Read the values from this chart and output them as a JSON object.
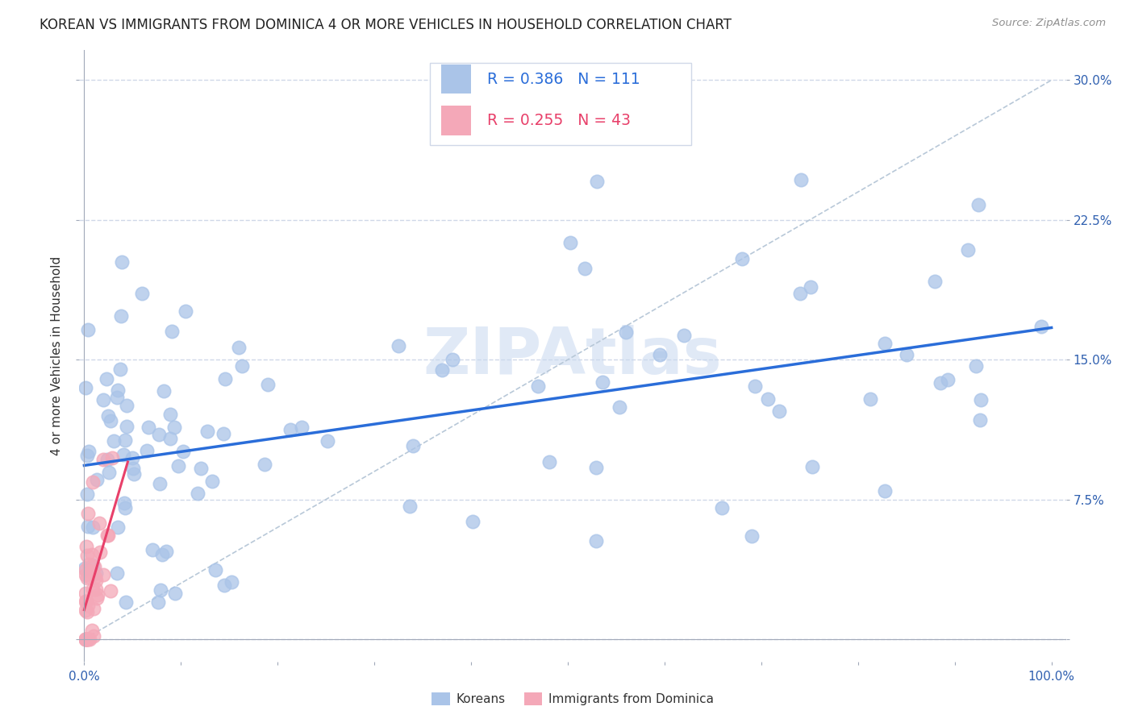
{
  "title": "KOREAN VS IMMIGRANTS FROM DOMINICA 4 OR MORE VEHICLES IN HOUSEHOLD CORRELATION CHART",
  "source": "Source: ZipAtlas.com",
  "ylabel": "4 or more Vehicles in Household",
  "korean_color": "#aac4e8",
  "dominica_color": "#f4a8b8",
  "korean_line_color": "#2a6dd9",
  "dominica_line_color": "#e8406a",
  "legend_text_color": "#2a6dd9",
  "watermark": "ZIPAtlas",
  "watermark_color": "#c8d8f0",
  "background_color": "#ffffff",
  "grid_color": "#d0d8e8",
  "korean_R": 0.386,
  "korean_N": 111,
  "dominica_R": 0.255,
  "dominica_N": 43
}
